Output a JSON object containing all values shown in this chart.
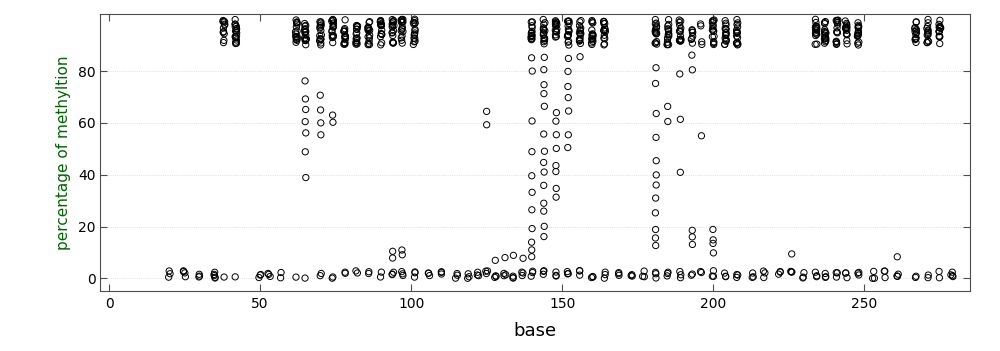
{
  "title": "",
  "xlabel": "base",
  "ylabel": "percentage of methyltion",
  "xlim": [
    -3,
    285
  ],
  "ylim": [
    -5,
    102
  ],
  "xticks": [
    0,
    50,
    100,
    150,
    200,
    250
  ],
  "yticks": [
    0,
    20,
    40,
    60,
    80
  ],
  "bg_color": "#ffffff",
  "marker_color": "black",
  "marker_size": 4.5,
  "marker_lw": 0.7,
  "seed": 42,
  "clusters": [
    {
      "x": 20,
      "n_high": 0,
      "n_low": 3,
      "spread": 0.4
    },
    {
      "x": 25,
      "n_high": 0,
      "n_low": 4,
      "spread": 0.4
    },
    {
      "x": 30,
      "n_high": 0,
      "n_low": 3,
      "spread": 0.4
    },
    {
      "x": 35,
      "n_high": 0,
      "n_low": 5,
      "spread": 0.4
    },
    {
      "x": 38,
      "n_high": 12,
      "n_low": 1,
      "spread": 0.3
    },
    {
      "x": 42,
      "n_high": 18,
      "n_low": 1,
      "spread": 0.3
    },
    {
      "x": 50,
      "n_high": 0,
      "n_low": 3,
      "spread": 0.4
    },
    {
      "x": 53,
      "n_high": 0,
      "n_low": 3,
      "spread": 0.4
    },
    {
      "x": 57,
      "n_high": 0,
      "n_low": 2,
      "spread": 0.4
    },
    {
      "x": 62,
      "n_high": 16,
      "n_low": 1,
      "spread": 0.3
    },
    {
      "x": 65,
      "n_high": 16,
      "n_low": 1,
      "spread": 0.3,
      "mid_vals": [
        40,
        50,
        55,
        60,
        65,
        70,
        75
      ]
    },
    {
      "x": 70,
      "n_high": 16,
      "n_low": 2,
      "spread": 0.3,
      "mid_vals": [
        55,
        60,
        65,
        70
      ]
    },
    {
      "x": 74,
      "n_high": 16,
      "n_low": 2,
      "spread": 0.3,
      "mid_vals": [
        59,
        63
      ]
    },
    {
      "x": 78,
      "n_high": 16,
      "n_low": 2,
      "spread": 0.3
    },
    {
      "x": 82,
      "n_high": 16,
      "n_low": 2,
      "spread": 0.3
    },
    {
      "x": 86,
      "n_high": 16,
      "n_low": 2,
      "spread": 0.3
    },
    {
      "x": 90,
      "n_high": 16,
      "n_low": 2,
      "spread": 0.3
    },
    {
      "x": 94,
      "n_high": 16,
      "n_low": 3,
      "spread": 0.3,
      "mid_vals": [
        9,
        10
      ]
    },
    {
      "x": 97,
      "n_high": 16,
      "n_low": 3,
      "spread": 0.3,
      "mid_vals": [
        9,
        10
      ]
    },
    {
      "x": 101,
      "n_high": 16,
      "n_low": 3,
      "spread": 0.3
    },
    {
      "x": 106,
      "n_high": 0,
      "n_low": 3,
      "spread": 0.4
    },
    {
      "x": 110,
      "n_high": 0,
      "n_low": 3,
      "spread": 0.4
    },
    {
      "x": 115,
      "n_high": 0,
      "n_low": 3,
      "spread": 0.4
    },
    {
      "x": 119,
      "n_high": 0,
      "n_low": 3,
      "spread": 0.4
    },
    {
      "x": 122,
      "n_high": 0,
      "n_low": 3,
      "spread": 0.4
    },
    {
      "x": 125,
      "n_high": 0,
      "n_low": 3,
      "spread": 0.4,
      "mid_vals": [
        60,
        63
      ]
    },
    {
      "x": 128,
      "n_high": 0,
      "n_low": 3,
      "spread": 0.4,
      "mid_vals": [
        8
      ]
    },
    {
      "x": 131,
      "n_high": 0,
      "n_low": 3,
      "spread": 0.4,
      "mid_vals": [
        9
      ]
    },
    {
      "x": 134,
      "n_high": 0,
      "n_low": 3,
      "spread": 0.4,
      "mid_vals": [
        9
      ]
    },
    {
      "x": 137,
      "n_high": 0,
      "n_low": 3,
      "spread": 0.4,
      "mid_vals": [
        9
      ]
    },
    {
      "x": 140,
      "n_high": 14,
      "n_low": 3,
      "spread": 0.3,
      "mid_vals": [
        80,
        85,
        60,
        50,
        40,
        33,
        25,
        20,
        15,
        12,
        9
      ]
    },
    {
      "x": 144,
      "n_high": 16,
      "n_low": 3,
      "spread": 0.3,
      "mid_vals": [
        80,
        85,
        75,
        70,
        65,
        55,
        50,
        44,
        40,
        35,
        30,
        25,
        20,
        15
      ]
    },
    {
      "x": 148,
      "n_high": 16,
      "n_low": 3,
      "spread": 0.3,
      "mid_vals": [
        65,
        60,
        55,
        50,
        44,
        40,
        35,
        30
      ]
    },
    {
      "x": 152,
      "n_high": 16,
      "n_low": 3,
      "spread": 0.3,
      "mid_vals": [
        85,
        80,
        75,
        70,
        65,
        55,
        50
      ]
    },
    {
      "x": 156,
      "n_high": 16,
      "n_low": 3,
      "spread": 0.3,
      "mid_vals": [
        85
      ]
    },
    {
      "x": 160,
      "n_high": 16,
      "n_low": 3,
      "spread": 0.3
    },
    {
      "x": 164,
      "n_high": 16,
      "n_low": 3,
      "spread": 0.3
    },
    {
      "x": 169,
      "n_high": 0,
      "n_low": 3,
      "spread": 0.4
    },
    {
      "x": 173,
      "n_high": 0,
      "n_low": 3,
      "spread": 0.4
    },
    {
      "x": 177,
      "n_high": 0,
      "n_low": 3,
      "spread": 0.4
    },
    {
      "x": 181,
      "n_high": 16,
      "n_low": 3,
      "spread": 0.3,
      "mid_vals": [
        80,
        75,
        65,
        55,
        44,
        40,
        35,
        30,
        25,
        20,
        15,
        12
      ]
    },
    {
      "x": 185,
      "n_high": 16,
      "n_low": 3,
      "spread": 0.3,
      "mid_vals": [
        60,
        65
      ]
    },
    {
      "x": 189,
      "n_high": 16,
      "n_low": 3,
      "spread": 0.3,
      "mid_vals": [
        80,
        60,
        40
      ]
    },
    {
      "x": 193,
      "n_high": 8,
      "n_low": 2,
      "spread": 0.3,
      "mid_vals": [
        85,
        80,
        12,
        15,
        18
      ]
    },
    {
      "x": 196,
      "n_high": 4,
      "n_low": 2,
      "spread": 0.3,
      "mid_vals": [
        55
      ]
    },
    {
      "x": 200,
      "n_high": 16,
      "n_low": 3,
      "spread": 0.3,
      "mid_vals": [
        10,
        12,
        15,
        18
      ]
    },
    {
      "x": 204,
      "n_high": 16,
      "n_low": 3,
      "spread": 0.3
    },
    {
      "x": 208,
      "n_high": 16,
      "n_low": 3,
      "spread": 0.3
    },
    {
      "x": 213,
      "n_high": 0,
      "n_low": 3,
      "spread": 0.4
    },
    {
      "x": 217,
      "n_high": 0,
      "n_low": 3,
      "spread": 0.4
    },
    {
      "x": 222,
      "n_high": 0,
      "n_low": 3,
      "spread": 0.4
    },
    {
      "x": 226,
      "n_high": 0,
      "n_low": 3,
      "spread": 0.4,
      "mid_vals": [
        9
      ]
    },
    {
      "x": 230,
      "n_high": 0,
      "n_low": 3,
      "spread": 0.4
    },
    {
      "x": 234,
      "n_high": 16,
      "n_low": 3,
      "spread": 0.3
    },
    {
      "x": 237,
      "n_high": 16,
      "n_low": 3,
      "spread": 0.3
    },
    {
      "x": 241,
      "n_high": 16,
      "n_low": 3,
      "spread": 0.3
    },
    {
      "x": 244,
      "n_high": 16,
      "n_low": 3,
      "spread": 0.3
    },
    {
      "x": 248,
      "n_high": 16,
      "n_low": 3,
      "spread": 0.3
    },
    {
      "x": 253,
      "n_high": 0,
      "n_low": 3,
      "spread": 0.4
    },
    {
      "x": 257,
      "n_high": 0,
      "n_low": 3,
      "spread": 0.4
    },
    {
      "x": 261,
      "n_high": 0,
      "n_low": 3,
      "spread": 0.4,
      "mid_vals": [
        8
      ]
    },
    {
      "x": 267,
      "n_high": 14,
      "n_low": 2,
      "spread": 0.3
    },
    {
      "x": 271,
      "n_high": 14,
      "n_low": 2,
      "spread": 0.3
    },
    {
      "x": 275,
      "n_high": 14,
      "n_low": 2,
      "spread": 0.3
    },
    {
      "x": 279,
      "n_high": 0,
      "n_low": 4,
      "spread": 0.4
    }
  ]
}
